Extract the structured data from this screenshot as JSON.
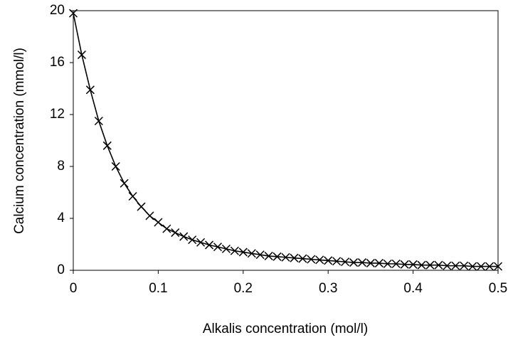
{
  "chart_data": {
    "type": "line",
    "x_label": "Alkalis concentration (mol/l)",
    "y_label": "Calcium concentration (mmol/l)",
    "x": [
      0,
      0.01,
      0.02,
      0.03,
      0.04,
      0.05,
      0.06,
      0.07,
      0.08,
      0.09,
      0.1,
      0.11,
      0.12,
      0.13,
      0.14,
      0.15,
      0.16,
      0.17,
      0.18,
      0.19,
      0.2,
      0.21,
      0.22,
      0.23,
      0.24,
      0.25,
      0.26,
      0.27,
      0.28,
      0.29,
      0.3,
      0.31,
      0.32,
      0.33,
      0.34,
      0.35,
      0.36,
      0.37,
      0.38,
      0.39,
      0.4,
      0.41,
      0.42,
      0.43,
      0.44,
      0.45,
      0.46,
      0.47,
      0.48,
      0.49,
      0.5
    ],
    "series": [
      {
        "color": "#000000",
        "marker": "x",
        "values": [
          19.8,
          16.6,
          13.9,
          11.5,
          9.6,
          8.0,
          6.7,
          5.7,
          4.9,
          4.2,
          3.7,
          3.2,
          2.9,
          2.6,
          2.35,
          2.15,
          1.95,
          1.8,
          1.65,
          1.5,
          1.4,
          1.3,
          1.2,
          1.1,
          1.05,
          1.0,
          0.95,
          0.9,
          0.85,
          0.8,
          0.75,
          0.7,
          0.65,
          0.6,
          0.6,
          0.55,
          0.55,
          0.5,
          0.5,
          0.45,
          0.45,
          0.4,
          0.4,
          0.4,
          0.35,
          0.35,
          0.35,
          0.3,
          0.3,
          0.3,
          0.3
        ]
      }
    ],
    "xlim": [
      0,
      0.5
    ],
    "xticks": [
      0,
      0.1,
      0.2,
      0.3,
      0.4,
      0.5
    ],
    "ylim": [
      0,
      20
    ],
    "yticks": [
      0,
      4,
      8,
      12,
      16,
      20
    ],
    "grid": false
  }
}
